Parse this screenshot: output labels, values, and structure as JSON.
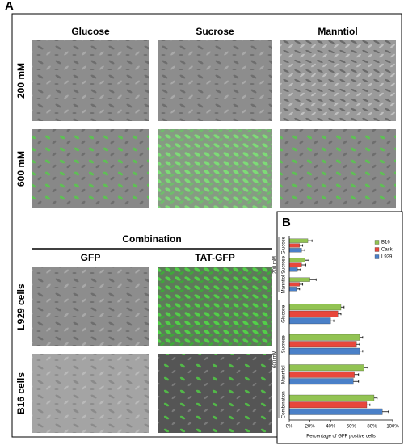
{
  "panel_a": {
    "label": "A",
    "columns": [
      "Glucose",
      "Sucrose",
      "Manntiol"
    ],
    "rows": [
      "200 mM",
      "600 mM"
    ],
    "combination": {
      "title": "Combination",
      "columns": [
        "GFP",
        "TAT-GFP"
      ],
      "rows": [
        "L929 cells",
        "B16 cells"
      ]
    }
  },
  "chart_data": {
    "type": "bar",
    "orientation": "horizontal",
    "label": "B",
    "groups": [
      {
        "label": "200 mM",
        "categories": [
          "Glucose",
          "Sucrose",
          "Manntiol"
        ]
      },
      {
        "label": "600 mM",
        "categories": [
          "Glucose",
          "Sucrose",
          "Manntiol",
          "Combination"
        ]
      }
    ],
    "series": [
      {
        "name": "B16",
        "color": "#92c353",
        "values": [
          18,
          15,
          20,
          50,
          68,
          72,
          82
        ],
        "errors": [
          4,
          4,
          6,
          3,
          3,
          4,
          3
        ]
      },
      {
        "name": "Caski",
        "color": "#e8473c",
        "values": [
          10,
          12,
          10,
          47,
          65,
          63,
          75
        ],
        "errors": [
          3,
          4,
          3,
          3,
          3,
          4,
          3
        ]
      },
      {
        "name": "L929",
        "color": "#4a80c8",
        "values": [
          12,
          8,
          7,
          40,
          68,
          62,
          90
        ],
        "errors": [
          3,
          3,
          3,
          3,
          3,
          5,
          6
        ]
      }
    ],
    "xlim": [
      0,
      100
    ],
    "xticks": [
      {
        "value": 0,
        "label": "0%"
      },
      {
        "value": 20,
        "label": "20%"
      },
      {
        "value": 40,
        "label": "40%"
      },
      {
        "value": 60,
        "label": "60%"
      },
      {
        "value": 80,
        "label": "80%"
      },
      {
        "value": 100,
        "label": "100%"
      }
    ],
    "xlabel": "Percentage of GFP postive cells",
    "legend": "top-right"
  }
}
